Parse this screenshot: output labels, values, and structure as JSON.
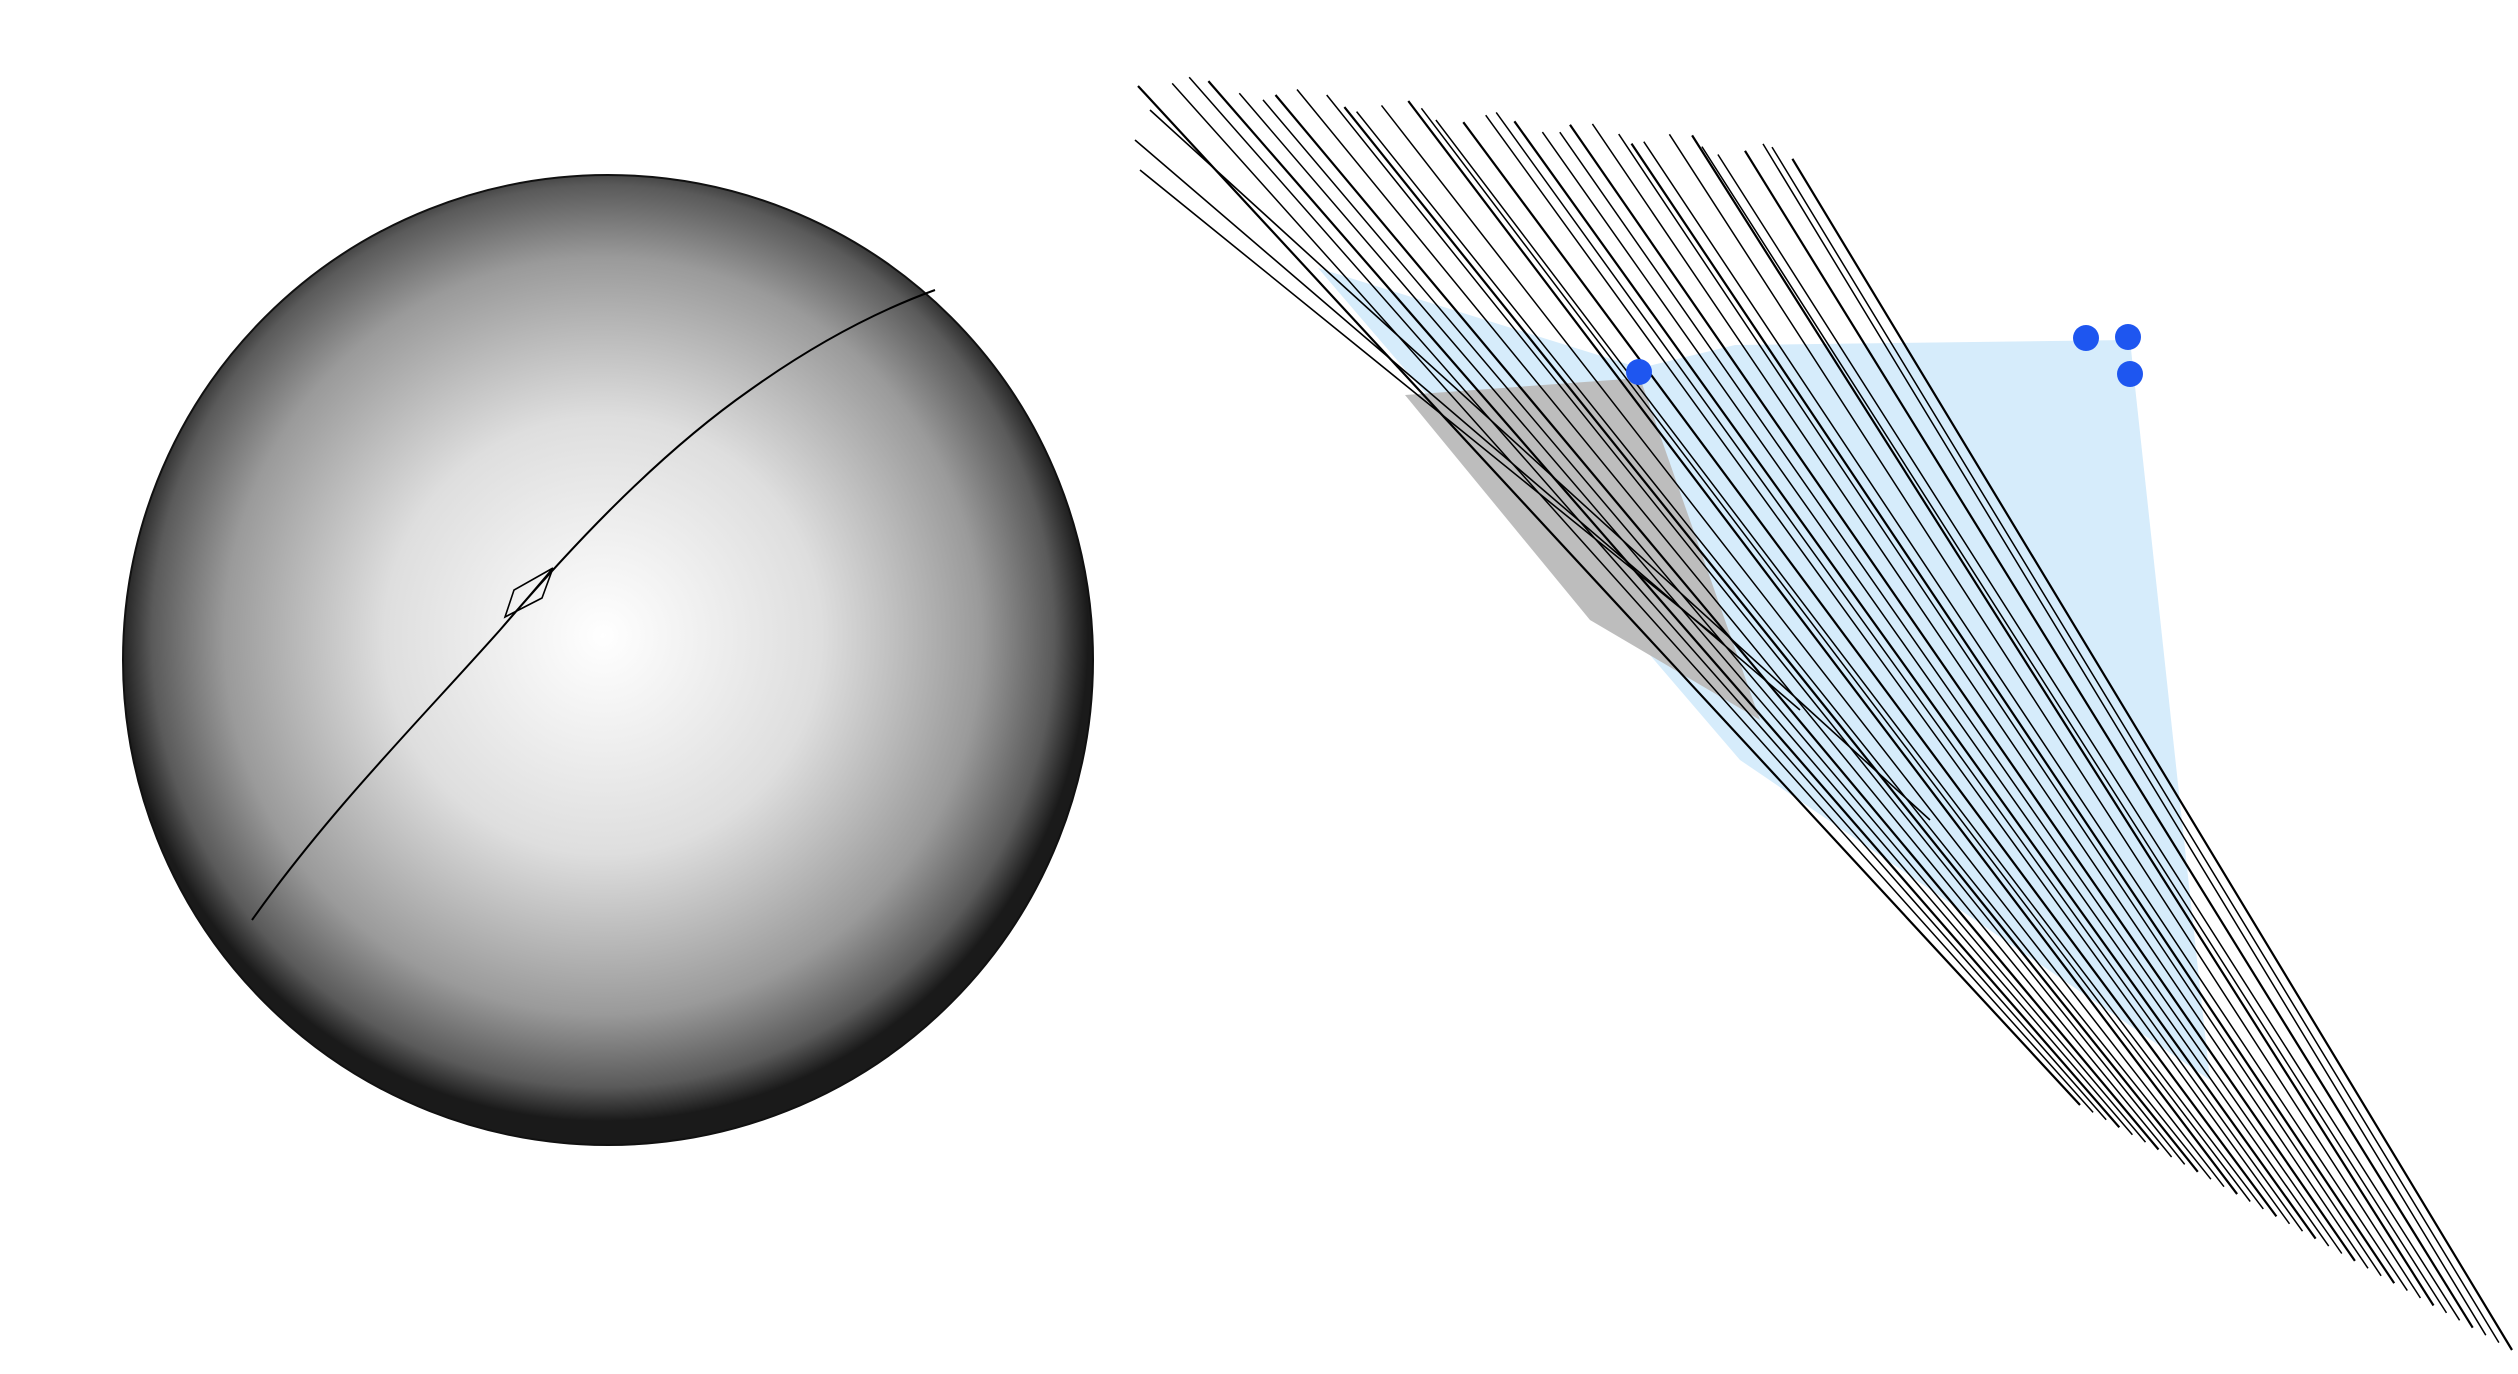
{
  "figure": {
    "panels": [
      "sphere-panel",
      "line-family-panel"
    ],
    "colors": {
      "background": "#ffffff",
      "sphere_highlight": "#ffffff",
      "sphere_edge": "#111111",
      "stroke": "#000000",
      "light_region": "#d6ecfb",
      "gray_region": "#bdbdbd",
      "control_point": "#1e56f0"
    },
    "line_family": {
      "line_count": 34
    },
    "control_points": {
      "count": 4
    }
  }
}
